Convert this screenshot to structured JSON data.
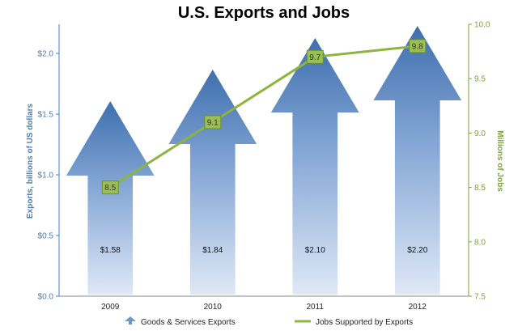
{
  "chart_data": {
    "type": "bar",
    "title": "U.S. Exports and Jobs",
    "categories": [
      "2009",
      "2010",
      "2011",
      "2012"
    ],
    "series": [
      {
        "name": "Goods & Services Exports",
        "axis": "left",
        "values": [
          1.58,
          1.84,
          2.1,
          2.2
        ],
        "labels": [
          "$1.58",
          "$1.84",
          "$2.10",
          "$2.20"
        ],
        "color": "#4f7fb8"
      },
      {
        "name": "Jobs Supported by Exports",
        "axis": "right",
        "type": "line",
        "values": [
          8.5,
          9.1,
          9.7,
          9.8
        ],
        "labels": [
          "8.5",
          "9.1",
          "9.7",
          "9.8"
        ],
        "color": "#8cb43f"
      }
    ],
    "ylabel": "Exports, billions of US dollars",
    "ylim": [
      0,
      2.2
    ],
    "yticks": [
      "$0.0",
      "$0.5",
      "$1.0",
      "$1.5",
      "$2.0"
    ],
    "y2label": "Millions of Jobs",
    "y2lim": [
      7.5,
      10.0
    ],
    "y2ticks": [
      "7.5",
      "8.0",
      "8.5",
      "9.0",
      "9.5",
      "10.0"
    ],
    "grid": false,
    "legend": "bottom"
  }
}
